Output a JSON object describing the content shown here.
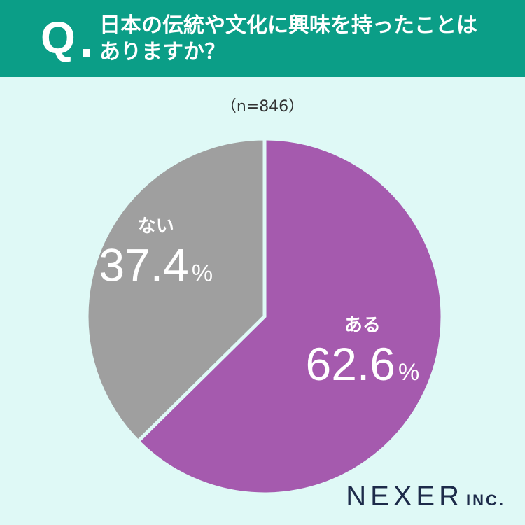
{
  "header": {
    "q_label": "Q",
    "question_line1": "日本の伝統や文化に興味を持ったことは",
    "question_line2": "ありますか？",
    "bg_color": "#0b9e87"
  },
  "sample_size_label": "（n=846）",
  "brand": {
    "name": "NEXER",
    "suffix": "INC."
  },
  "chart_data": {
    "type": "pie",
    "title": "",
    "start_angle_deg": 0,
    "direction": "clockwise",
    "slices": [
      {
        "label": "ある",
        "value": 62.6,
        "display": "62.6",
        "unit": "%",
        "color": "#a55aae"
      },
      {
        "label": "ない",
        "value": 37.4,
        "display": "37.4",
        "unit": "%",
        "color": "#9f9f9f"
      }
    ],
    "background_color": "#dff9f6"
  }
}
